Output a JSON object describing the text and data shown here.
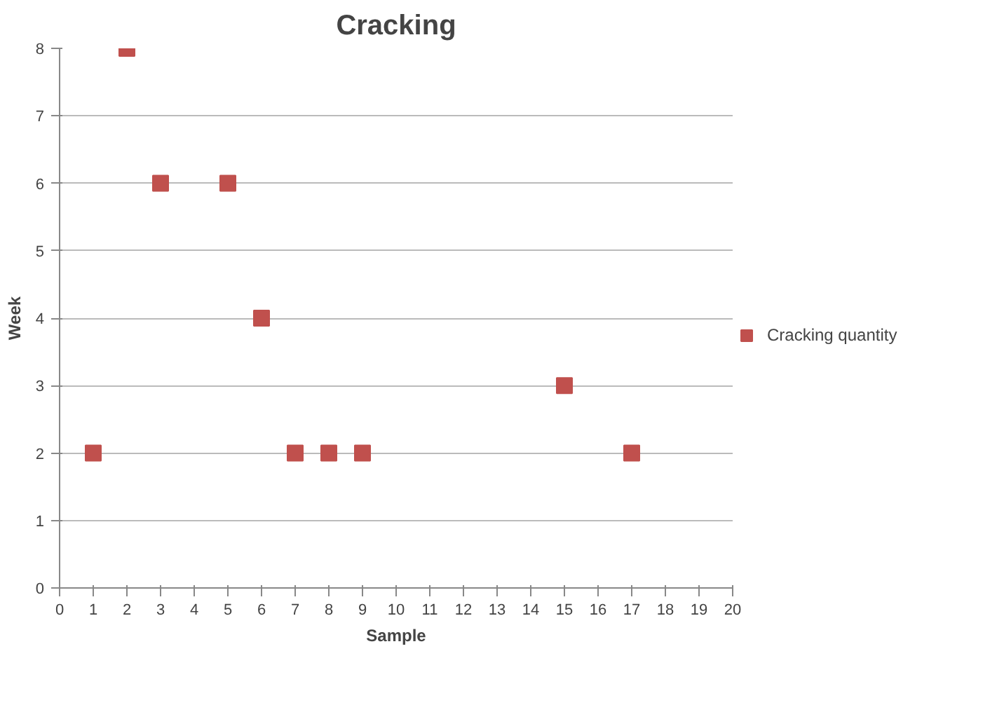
{
  "chart_data": {
    "type": "scatter",
    "title": "Cracking",
    "xlabel": "Sample",
    "ylabel": "Week",
    "x": [
      1,
      2,
      3,
      5,
      6,
      7,
      8,
      9,
      15,
      17
    ],
    "series": [
      {
        "name": "Cracking quantity",
        "color": "#c0504d",
        "values": [
          2,
          8,
          6,
          6,
          4,
          2,
          2,
          2,
          3,
          2
        ]
      }
    ],
    "xlim": [
      0,
      20
    ],
    "xticks": [
      0,
      1,
      2,
      3,
      4,
      5,
      6,
      7,
      8,
      9,
      10,
      11,
      12,
      13,
      14,
      15,
      16,
      17,
      18,
      19,
      20
    ],
    "ylim": [
      0,
      8
    ],
    "yticks": [
      0,
      1,
      2,
      3,
      4,
      5,
      6,
      7,
      8
    ],
    "grid": "y",
    "legend": "right",
    "marker": "square"
  }
}
